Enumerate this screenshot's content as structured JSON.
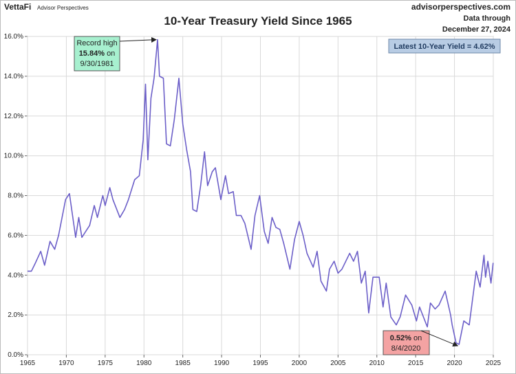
{
  "header": {
    "brand": "VettaFi",
    "brand_sub": "Advisor Perspectives",
    "site": "advisorperspectives.com",
    "data_through": "Data through",
    "date": "December 27, 2024"
  },
  "chart_data": {
    "type": "line",
    "title": "10-Year Treasury Yield Since 1965",
    "x": [
      1965.0,
      1965.5,
      1966.0,
      1966.7,
      1967.2,
      1967.9,
      1968.5,
      1969.0,
      1969.9,
      1970.4,
      1970.8,
      1971.2,
      1971.6,
      1972.0,
      1972.5,
      1973.0,
      1973.6,
      1974.0,
      1974.7,
      1975.0,
      1975.6,
      1976.0,
      1976.9,
      1977.5,
      1978.0,
      1978.8,
      1979.4,
      1979.9,
      1980.2,
      1980.5,
      1980.9,
      1981.3,
      1981.75,
      1982.0,
      1982.5,
      1982.9,
      1983.4,
      1983.9,
      1984.5,
      1985.0,
      1985.5,
      1986.0,
      1986.3,
      1986.8,
      1987.3,
      1987.8,
      1988.2,
      1988.8,
      1989.2,
      1989.9,
      1990.5,
      1990.9,
      1991.5,
      1991.9,
      1992.5,
      1993.0,
      1993.8,
      1994.3,
      1994.9,
      1995.5,
      1996.0,
      1996.5,
      1997.0,
      1997.5,
      1998.0,
      1998.8,
      1999.4,
      2000.0,
      2000.5,
      2001.0,
      2001.8,
      2002.3,
      2002.8,
      2003.5,
      2003.9,
      2004.5,
      2005.0,
      2005.5,
      2006.5,
      2007.0,
      2007.5,
      2008.0,
      2008.5,
      2008.95,
      2009.5,
      2010.3,
      2010.8,
      2011.2,
      2011.8,
      2012.5,
      2013.0,
      2013.7,
      2014.5,
      2015.1,
      2015.5,
      2016.5,
      2016.9,
      2017.5,
      2018.0,
      2018.8,
      2019.5,
      2019.7,
      2020.2,
      2020.59,
      2021.2,
      2021.9,
      2022.4,
      2022.8,
      2023.3,
      2023.8,
      2024.0,
      2024.3,
      2024.7,
      2024.98
    ],
    "series": [
      {
        "name": "10-Year Treasury Yield",
        "color": "#6b5ec8",
        "values": [
          4.2,
          4.2,
          4.6,
          5.2,
          4.5,
          5.7,
          5.3,
          6.0,
          7.8,
          8.1,
          7.0,
          5.9,
          6.9,
          5.9,
          6.2,
          6.5,
          7.5,
          6.9,
          8.0,
          7.5,
          8.4,
          7.8,
          6.9,
          7.3,
          7.8,
          8.8,
          9.0,
          10.8,
          13.6,
          9.8,
          12.9,
          13.9,
          15.84,
          14.0,
          13.9,
          10.6,
          10.5,
          11.8,
          13.9,
          11.6,
          10.3,
          9.2,
          7.3,
          7.2,
          8.5,
          10.2,
          8.5,
          9.2,
          9.4,
          7.8,
          9.0,
          8.1,
          8.2,
          7.0,
          7.0,
          6.6,
          5.3,
          7.0,
          8.0,
          6.2,
          5.6,
          6.9,
          6.4,
          6.3,
          5.6,
          4.3,
          5.8,
          6.7,
          6.0,
          5.1,
          4.4,
          5.2,
          3.7,
          3.2,
          4.3,
          4.7,
          4.1,
          4.3,
          5.1,
          4.7,
          5.2,
          3.6,
          4.2,
          2.1,
          3.9,
          3.9,
          2.4,
          3.6,
          1.9,
          1.5,
          1.9,
          3.0,
          2.5,
          1.7,
          2.4,
          1.4,
          2.6,
          2.3,
          2.5,
          3.2,
          2.0,
          1.5,
          0.6,
          0.52,
          1.7,
          1.5,
          3.0,
          4.2,
          3.4,
          5.0,
          3.9,
          4.7,
          3.6,
          4.62
        ]
      }
    ],
    "xlim": [
      1965,
      2025
    ],
    "xticks": [
      1965,
      1970,
      1975,
      1980,
      1985,
      1990,
      1995,
      2000,
      2005,
      2010,
      2015,
      2020,
      2025
    ],
    "ylim": [
      0,
      16
    ],
    "yticks": [
      {
        "value": 0,
        "label": "0.0%"
      },
      {
        "value": 2,
        "label": "2.0%"
      },
      {
        "value": 4,
        "label": "4.0%"
      },
      {
        "value": 6,
        "label": "6.0%"
      },
      {
        "value": 8,
        "label": "8.0%"
      },
      {
        "value": 10,
        "label": "10.0%"
      },
      {
        "value": 12,
        "label": "12.0%"
      },
      {
        "value": 14,
        "label": "14.0%"
      },
      {
        "value": 16,
        "label": "16.0%"
      }
    ],
    "grid": true,
    "record": {
      "text": "Record high",
      "x": 1981.75,
      "y": 15.84,
      "label": "15.84%",
      "on": "on",
      "date": "9/30/1981"
    },
    "low": {
      "x": 2020.59,
      "y": 0.52,
      "label": "0.52%",
      "on": "on",
      "date": "8/4/2020"
    },
    "latest": "Latest 10-Year Yield = 4.62%"
  }
}
